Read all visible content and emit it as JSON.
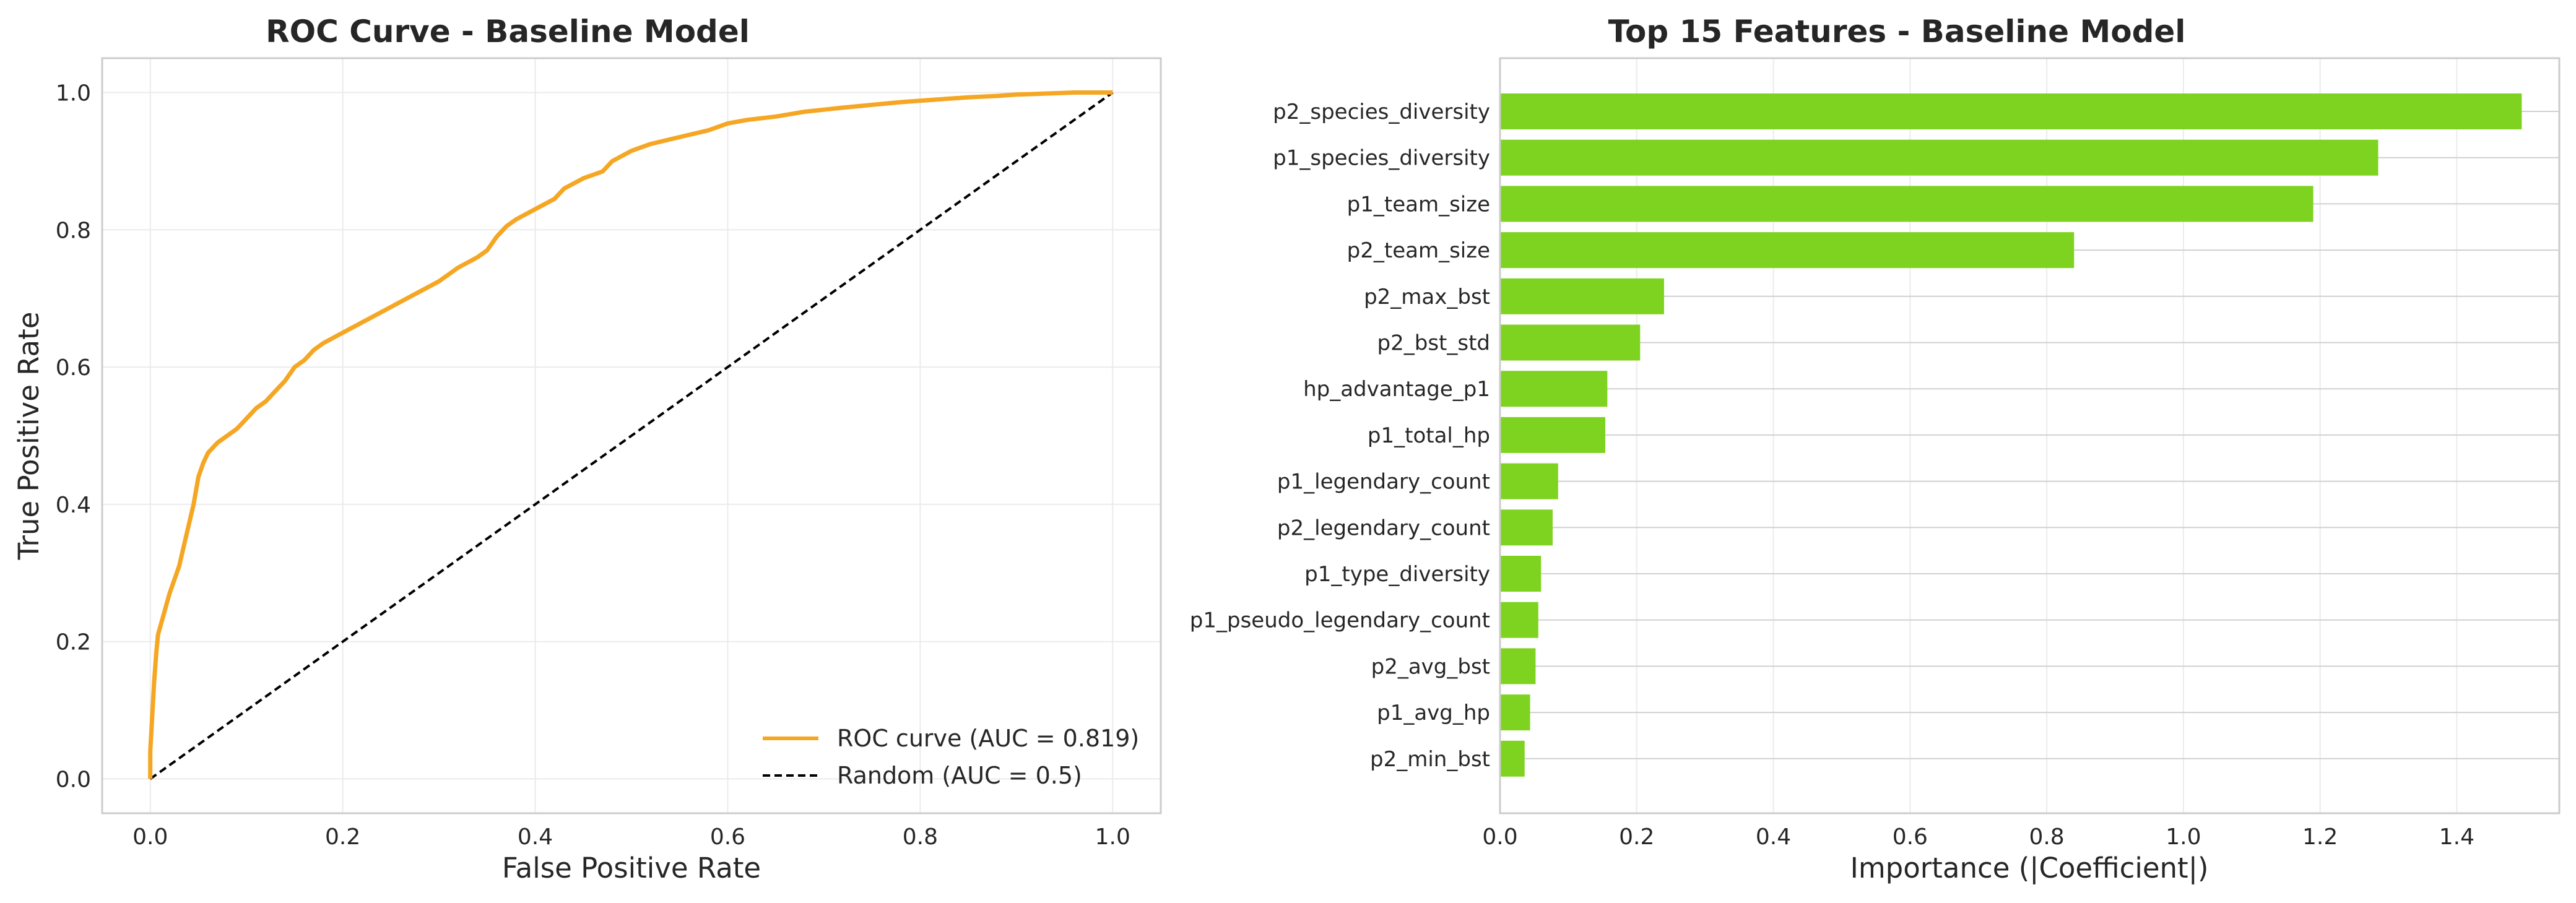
{
  "chart_data": [
    {
      "type": "line",
      "title": "ROC Curve - Baseline Model",
      "xlabel": "False Positive Rate",
      "ylabel": "True Positive Rate",
      "xlim": [
        -0.05,
        1.05
      ],
      "ylim": [
        -0.05,
        1.05
      ],
      "xticks": [
        "0.0",
        "0.2",
        "0.4",
        "0.6",
        "0.8",
        "1.0"
      ],
      "yticks": [
        "0.0",
        "0.2",
        "0.4",
        "0.6",
        "0.8",
        "1.0"
      ],
      "grid": true,
      "legend_position": "lower-right",
      "series": [
        {
          "name": "ROC curve (AUC = 0.819)",
          "color": "#f5a623",
          "style": "solid",
          "x": [
            0,
            0,
            0.002,
            0.004,
            0.006,
            0.008,
            0.012,
            0.016,
            0.02,
            0.025,
            0.03,
            0.035,
            0.04,
            0.045,
            0.05,
            0.055,
            0.06,
            0.07,
            0.08,
            0.09,
            0.1,
            0.11,
            0.12,
            0.13,
            0.14,
            0.15,
            0.16,
            0.17,
            0.18,
            0.2,
            0.22,
            0.24,
            0.26,
            0.28,
            0.3,
            0.32,
            0.34,
            0.35,
            0.36,
            0.37,
            0.38,
            0.4,
            0.42,
            0.43,
            0.45,
            0.47,
            0.48,
            0.5,
            0.52,
            0.55,
            0.58,
            0.6,
            0.62,
            0.65,
            0.68,
            0.7,
            0.72,
            0.75,
            0.78,
            0.8,
            0.82,
            0.85,
            0.88,
            0.9,
            0.92,
            0.94,
            0.96,
            0.98,
            1.0
          ],
          "y": [
            0,
            0.04,
            0.09,
            0.14,
            0.18,
            0.21,
            0.23,
            0.25,
            0.27,
            0.29,
            0.31,
            0.34,
            0.37,
            0.4,
            0.44,
            0.46,
            0.475,
            0.49,
            0.5,
            0.51,
            0.525,
            0.54,
            0.55,
            0.565,
            0.58,
            0.6,
            0.61,
            0.625,
            0.635,
            0.65,
            0.665,
            0.68,
            0.695,
            0.71,
            0.725,
            0.745,
            0.76,
            0.77,
            0.79,
            0.805,
            0.815,
            0.83,
            0.845,
            0.86,
            0.875,
            0.885,
            0.9,
            0.915,
            0.925,
            0.935,
            0.945,
            0.955,
            0.96,
            0.965,
            0.972,
            0.975,
            0.978,
            0.982,
            0.986,
            0.988,
            0.99,
            0.993,
            0.995,
            0.997,
            0.998,
            0.999,
            1.0,
            1.0,
            1.0
          ]
        },
        {
          "name": "Random (AUC = 0.5)",
          "color": "#000000",
          "style": "dashed",
          "x": [
            0,
            1
          ],
          "y": [
            0,
            1
          ]
        }
      ]
    },
    {
      "type": "bar",
      "orientation": "horizontal",
      "title": "Top 15 Features - Baseline Model",
      "xlabel": "Importance (|Coefficient|)",
      "ylabel": "",
      "xlim": [
        0,
        1.55
      ],
      "xticks": [
        "0.0",
        "0.2",
        "0.4",
        "0.6",
        "0.8",
        "1.0",
        "1.2",
        "1.4"
      ],
      "grid": true,
      "color": "#7ed321",
      "categories": [
        "p2_species_diversity",
        "p1_species_diversity",
        "p1_team_size",
        "p2_team_size",
        "p2_max_bst",
        "p2_bst_std",
        "hp_advantage_p1",
        "p1_total_hp",
        "p1_legendary_count",
        "p2_legendary_count",
        "p1_type_diversity",
        "p1_pseudo_legendary_count",
        "p2_avg_bst",
        "p1_avg_hp",
        "p2_min_bst"
      ],
      "values": [
        1.495,
        1.285,
        1.19,
        0.84,
        0.24,
        0.205,
        0.157,
        0.154,
        0.085,
        0.077,
        0.06,
        0.056,
        0.052,
        0.044,
        0.036
      ]
    }
  ]
}
